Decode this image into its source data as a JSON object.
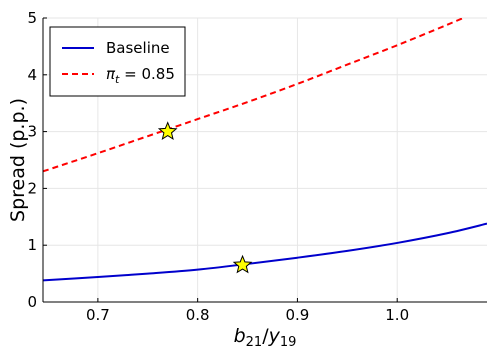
{
  "chart_data": {
    "type": "line",
    "xlabel": "b21/y19",
    "ylabel": "Spread (p.p.)",
    "xlim": [
      0.645,
      1.09
    ],
    "ylim": [
      0,
      5
    ],
    "xticks": [
      0.7,
      0.8,
      0.9,
      1.0
    ],
    "yticks": [
      0,
      1,
      2,
      3,
      4,
      5
    ],
    "grid": true,
    "legend_position": "top-left",
    "series": [
      {
        "name": "Baseline",
        "color": "#0000cc",
        "dash": "solid",
        "x": [
          0.645,
          0.7,
          0.75,
          0.8,
          0.85,
          0.9,
          0.95,
          1.0,
          1.05,
          1.09
        ],
        "y": [
          0.38,
          0.44,
          0.5,
          0.57,
          0.67,
          0.78,
          0.9,
          1.04,
          1.21,
          1.38
        ]
      },
      {
        "name": "π_t = 0.85",
        "color": "#ff0000",
        "dash": "dashed",
        "x": [
          0.645,
          0.7,
          0.75,
          0.8,
          0.85,
          0.9,
          0.95,
          1.0,
          1.05,
          1.09
        ],
        "y": [
          2.3,
          2.62,
          2.92,
          3.22,
          3.52,
          3.84,
          4.18,
          4.52,
          4.88,
          5.18
        ]
      }
    ],
    "markers": [
      {
        "series": "Baseline",
        "x": 0.845,
        "y": 0.65,
        "shape": "star",
        "color": "#ffff00"
      },
      {
        "series": "π_t = 0.85",
        "x": 0.77,
        "y": 3.0,
        "shape": "star",
        "color": "#ffff00"
      }
    ]
  }
}
